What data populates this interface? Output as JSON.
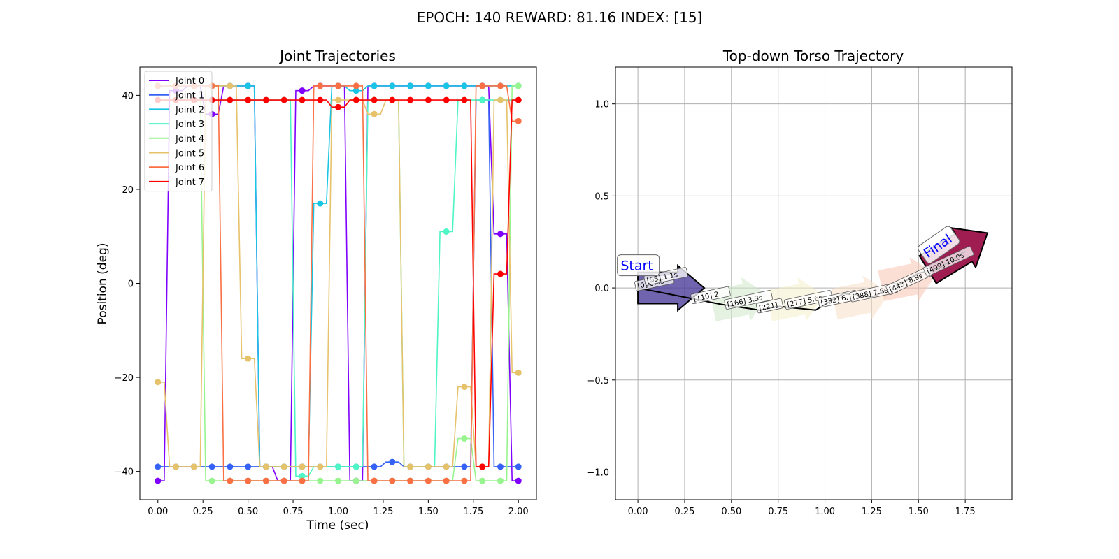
{
  "figure": {
    "suptitle": "EPOCH: 140 REWARD:  81.16 INDEX: [15]"
  },
  "chart_data": [
    {
      "type": "line",
      "title": "Joint Trajectories",
      "xlabel": "Time (sec)",
      "ylabel": "Position (deg)",
      "xlim": [
        -0.1,
        2.1
      ],
      "ylim": [
        -46,
        46
      ],
      "xticks": [
        "0.00",
        "0.25",
        "0.50",
        "0.75",
        "1.00",
        "1.25",
        "1.50",
        "1.75",
        "2.00"
      ],
      "yticks": [
        "−40",
        "−20",
        "0",
        "20",
        "40"
      ],
      "grid": false,
      "legend": "top-left",
      "x": [
        0.0,
        0.1,
        0.2,
        0.3,
        0.4,
        0.5,
        0.6,
        0.7,
        0.8,
        0.9,
        1.0,
        1.1,
        1.2,
        1.3,
        1.4,
        1.5,
        1.6,
        1.7,
        1.8,
        1.9,
        2.0
      ],
      "series": [
        {
          "name": "Joint 0",
          "color": "#7f00ff",
          "values": [
            -42,
            41,
            42,
            36,
            42,
            42,
            -39,
            -42,
            41,
            42,
            42,
            -42,
            42,
            42,
            42,
            42,
            42,
            42,
            42,
            10.5,
            -42
          ]
        },
        {
          "name": "Joint 1",
          "color": "#3661f5",
          "values": [
            -39,
            -39,
            -39,
            -39,
            -39,
            -39,
            -39,
            -39,
            -39,
            -39,
            -39,
            -39,
            -39,
            -38,
            -39,
            -39,
            -39,
            -39,
            39,
            -39,
            -39
          ]
        },
        {
          "name": "Joint 2",
          "color": "#18c5e4",
          "values": [
            42,
            42,
            42,
            42,
            42,
            42,
            -39,
            -39,
            -39,
            17,
            42,
            41,
            42,
            42,
            42,
            42,
            42,
            42,
            42,
            42,
            42
          ]
        },
        {
          "name": "Joint 3",
          "color": "#4ef5c5",
          "values": [
            39,
            39,
            39,
            39,
            39,
            39,
            39,
            39,
            -41,
            -39,
            -39,
            -39,
            39,
            39,
            -39,
            -39,
            11,
            39,
            39,
            39,
            39
          ]
        },
        {
          "name": "Joint 4",
          "color": "#98f48f",
          "values": [
            39,
            39,
            39,
            -42,
            -42,
            -42,
            -42,
            -42,
            -42,
            -42,
            -42,
            -42,
            -42,
            -42,
            -42,
            -42,
            -42,
            -33,
            -42,
            -42,
            42
          ]
        },
        {
          "name": "Joint 5",
          "color": "#e6c26a",
          "values": [
            -21,
            -39,
            -39,
            42,
            42,
            -16,
            -39,
            -39,
            -39,
            -39,
            39,
            39,
            36,
            39,
            -39,
            -39,
            -39,
            -22,
            -39,
            39,
            -19
          ]
        },
        {
          "name": "Joint 6",
          "color": "#fa6f43",
          "values": [
            42,
            42,
            42,
            42,
            -42,
            -42,
            -42,
            -42,
            -42,
            42,
            42,
            42,
            -42,
            -42,
            -42,
            -42,
            -42,
            -42,
            42,
            42,
            34.5
          ]
        },
        {
          "name": "Joint 7",
          "color": "#ff0000",
          "values": [
            39,
            39,
            39,
            39,
            39,
            39,
            39,
            39,
            39,
            39,
            37.5,
            39,
            39,
            39,
            39,
            39,
            39,
            39,
            -39,
            2,
            39
          ]
        }
      ]
    },
    {
      "type": "scatter",
      "title": "Top-down Torso Trajectory",
      "xlim": [
        -0.12,
        2.0
      ],
      "ylim": [
        -1.15,
        1.2
      ],
      "xticks": [
        "0.00",
        "0.25",
        "0.50",
        "0.75",
        "1.00",
        "1.25",
        "1.50",
        "1.75"
      ],
      "yticks": [
        "−1.0",
        "−0.5",
        "0.0",
        "0.5",
        "1.0"
      ],
      "grid": true,
      "path": [
        [
          0,
          0
        ],
        [
          0.25,
          -0.05
        ],
        [
          0.45,
          -0.09
        ],
        [
          0.65,
          -0.12
        ],
        [
          0.75,
          -0.1
        ],
        [
          0.95,
          -0.12
        ],
        [
          1.1,
          -0.03
        ],
        [
          1.25,
          -0.05
        ],
        [
          1.4,
          0.02
        ],
        [
          1.5,
          0.08
        ],
        [
          1.6,
          0.1
        ],
        [
          1.75,
          0.2
        ]
      ],
      "start_label": "Start",
      "final_label": "Final",
      "waypoints": [
        {
          "label": "[0] 0.0s",
          "x": 0.0,
          "y": 0.0
        },
        {
          "label": "[55] 1.1s",
          "x": 0.05,
          "y": 0.03
        },
        {
          "label": "[110] 2.",
          "x": 0.3,
          "y": -0.07
        },
        {
          "label": "[166] 3.3s",
          "x": 0.48,
          "y": -0.1
        },
        {
          "label": "[221]",
          "x": 0.65,
          "y": -0.12
        },
        {
          "label": "[277] 5.6s",
          "x": 0.8,
          "y": -0.1
        },
        {
          "label": "[332] 6.",
          "x": 0.98,
          "y": -0.09
        },
        {
          "label": "[388] 7.8s",
          "x": 1.15,
          "y": -0.06
        },
        {
          "label": "[443] 8.9s",
          "x": 1.35,
          "y": -0.02
        },
        {
          "label": "[499] 10.0s",
          "x": 1.55,
          "y": 0.08
        }
      ]
    }
  ]
}
